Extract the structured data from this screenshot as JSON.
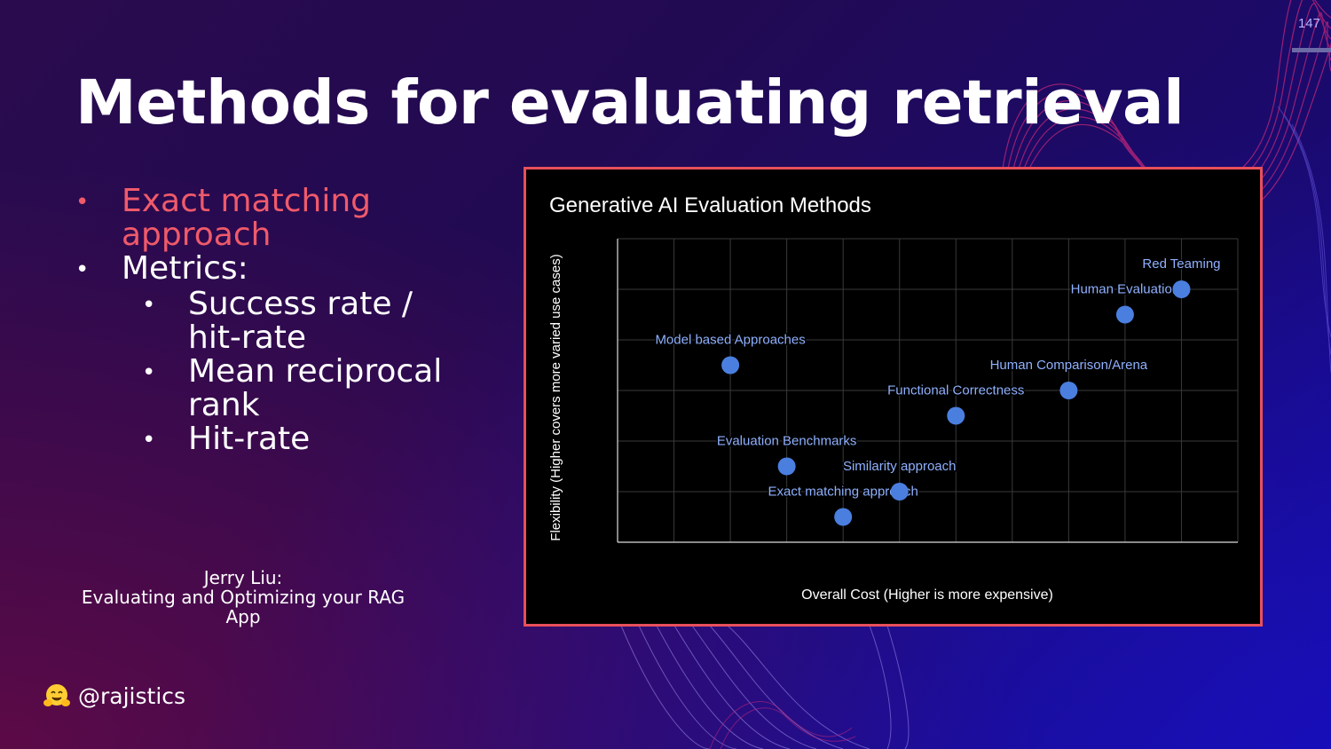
{
  "slide": {
    "number": "147",
    "title": "Methods for evaluating retrieval",
    "bullets": [
      {
        "text": "Exact matching approach",
        "lines": [
          "Exact matching",
          "approach"
        ],
        "highlight": true
      },
      {
        "text": "Metrics:",
        "lines": [
          "Metrics:"
        ],
        "highlight": false,
        "children": [
          {
            "lines": [
              "Success rate /",
              "hit-rate"
            ]
          },
          {
            "lines": [
              "Mean reciprocal",
              "rank"
            ]
          },
          {
            "lines": [
              "Hit-rate"
            ]
          }
        ]
      }
    ],
    "attribution": {
      "lines": [
        "Jerry Liu:",
        "Evaluating and Optimizing your RAG",
        "App"
      ]
    },
    "handle": "@rajistics",
    "handle_icon": "hugging-face-emoji-icon"
  },
  "colors": {
    "accent": "#e8505b",
    "highlight_text": "#f05a6a",
    "point": "#4a7fe0",
    "point_label": "#8fb1ff"
  },
  "chart_data": {
    "type": "scatter",
    "title": "Generative AI Evaluation Methods",
    "xlabel": "Overall Cost (Higher is more expensive)",
    "ylabel": "Flexibility (Higher covers more varied use cases)",
    "xlim": [
      0,
      11
    ],
    "ylim": [
      0,
      6
    ],
    "grid": true,
    "points": [
      {
        "label": "Exact matching approach",
        "x": 4,
        "y": 0.5
      },
      {
        "label": "Similarity approach",
        "x": 5,
        "y": 1
      },
      {
        "label": "Evaluation Benchmarks",
        "x": 3,
        "y": 1.5
      },
      {
        "label": "Functional Correctness",
        "x": 6,
        "y": 2.5
      },
      {
        "label": "Human Comparison/Arena",
        "x": 8,
        "y": 3
      },
      {
        "label": "Model based Approaches",
        "x": 2,
        "y": 3.5
      },
      {
        "label": "Human Evaluation",
        "x": 9,
        "y": 4.5
      },
      {
        "label": "Red Teaming",
        "x": 10,
        "y": 5
      }
    ]
  }
}
